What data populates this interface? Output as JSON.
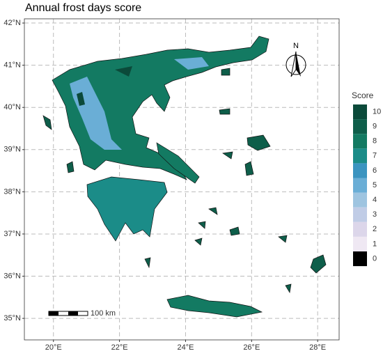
{
  "title": "Annual frost days score",
  "map": {
    "xlim": [
      19.12,
      28.65
    ],
    "ylim": [
      34.49,
      42.1
    ],
    "xticks": [
      {
        "value": 20,
        "label": "20°E"
      },
      {
        "value": 22,
        "label": "22°E"
      },
      {
        "value": 24,
        "label": "24°E"
      },
      {
        "value": 26,
        "label": "26°E"
      },
      {
        "value": 28,
        "label": "28°E"
      }
    ],
    "yticks": [
      {
        "value": 35,
        "label": "35°N"
      },
      {
        "value": 36,
        "label": "36°N"
      },
      {
        "value": 37,
        "label": "37°N"
      },
      {
        "value": 38,
        "label": "38°N"
      },
      {
        "value": 39,
        "label": "39°N"
      },
      {
        "value": 40,
        "label": "40°N"
      },
      {
        "value": 41,
        "label": "41°N"
      },
      {
        "value": 42,
        "label": "42°N"
      }
    ],
    "grid": true
  },
  "legend": {
    "title": "Score",
    "items": [
      {
        "value": 10,
        "color": "#0b4a3a"
      },
      {
        "value": 9,
        "color": "#0e5e4a"
      },
      {
        "value": 8,
        "color": "#137a62"
      },
      {
        "value": 7,
        "color": "#1b8c88"
      },
      {
        "value": 6,
        "color": "#3b94c0"
      },
      {
        "value": 5,
        "color": "#6aaed6"
      },
      {
        "value": 4,
        "color": "#9ec4e0"
      },
      {
        "value": 3,
        "color": "#c0cce6"
      },
      {
        "value": 2,
        "color": "#dcd6ea"
      },
      {
        "value": 1,
        "color": "#efe8f3"
      },
      {
        "value": 0,
        "color": "#000000"
      }
    ]
  },
  "scale_bar": "100 km",
  "north_label": "N"
}
